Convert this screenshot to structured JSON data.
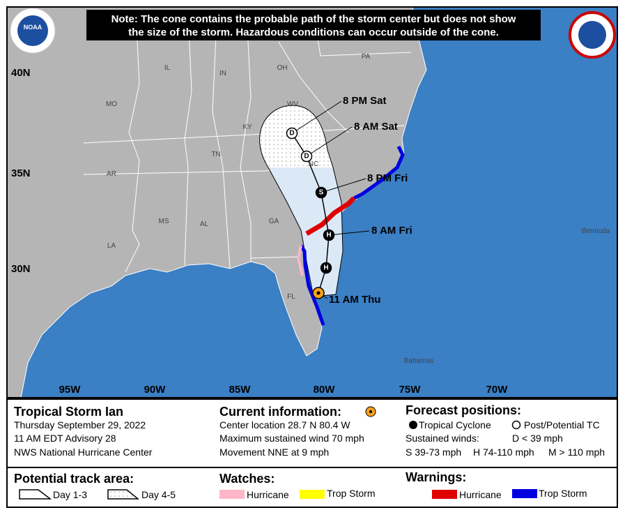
{
  "note": [
    "Note: The cone contains the probable path of the storm center but does not show",
    "the size of the storm. Hazardous conditions can occur outside of the cone."
  ],
  "logos": {
    "noaa": "NOAA"
  },
  "map": {
    "latitudes": [
      "40N",
      "35N",
      "30N"
    ],
    "longitudes": [
      "95W",
      "90W",
      "85W",
      "80W",
      "75W",
      "70W"
    ],
    "states": [
      "IL",
      "IN",
      "OH",
      "PA",
      "MO",
      "KY",
      "WV",
      "TN",
      "NC",
      "AR",
      "MS",
      "AL",
      "GA",
      "LA",
      "FL"
    ],
    "places": [
      "Bermuda",
      "Bahamas"
    ],
    "forecast_labels": [
      "8 PM Sat",
      "8 AM Sat",
      "8 PM Fri",
      "8 AM Fri",
      "11 AM Thu"
    ],
    "markers": [
      "D",
      "D",
      "S",
      "H",
      "H"
    ]
  },
  "storm": {
    "title": "Tropical Storm Ian",
    "date": "Thursday September 29, 2022",
    "advisory": "11 AM EDT Advisory 28",
    "center": "NWS National Hurricane Center"
  },
  "current": {
    "heading": "Current information:",
    "lines": [
      "Center location 28.7 N 80.4 W",
      "Maximum sustained wind 70 mph",
      "Movement NNE at 9 mph"
    ]
  },
  "forecast": {
    "heading": "Forecast positions:",
    "tropical": "Tropical Cyclone",
    "post": "Post/Potential TC",
    "sustained": "Sustained winds:",
    "d": "D < 39 mph",
    "s": "S 39-73 mph",
    "h": "H 74-110 mph",
    "m": "M > 110 mph"
  },
  "track_area": {
    "heading": "Potential track area:",
    "day13": "Day 1-3",
    "day45": "Day 4-5"
  },
  "watches": {
    "heading": "Watches:",
    "hurricane": "Hurricane",
    "trop": "Trop Storm"
  },
  "warnings": {
    "heading": "Warnings:",
    "hurricane": "Hurricane",
    "trop": "Trop Storm"
  }
}
